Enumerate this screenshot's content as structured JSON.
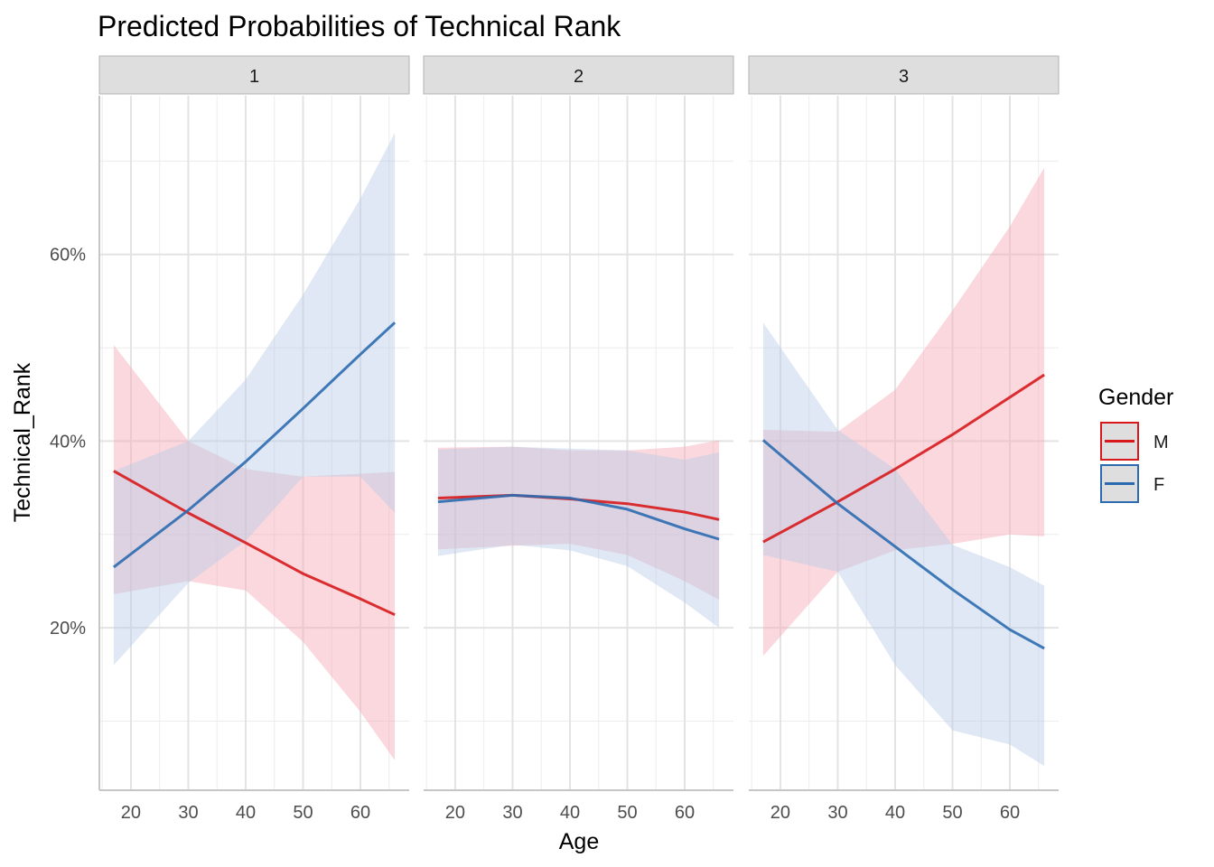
{
  "chart_data": {
    "type": "line",
    "title": "Predicted Probabilities of Technical Rank",
    "xlabel": "Age",
    "ylabel": "Technical_Rank",
    "xlim": [
      14.5,
      68.5
    ],
    "ylim": [
      0.026,
      0.77
    ],
    "x_ticks": [
      20,
      30,
      40,
      50,
      60
    ],
    "x_tick_labels": [
      "20",
      "30",
      "40",
      "50",
      "60"
    ],
    "y_ticks": [
      0.2,
      0.4,
      0.6
    ],
    "y_tick_labels": [
      "20%",
      "40%",
      "60%"
    ],
    "grid": true,
    "legend": {
      "title": "Gender",
      "position": "right",
      "entries": [
        {
          "label": "M",
          "color": "#d7191c",
          "fill": "#dedede"
        },
        {
          "label": "F",
          "color": "#2c6bb0",
          "fill": "#dedede"
        }
      ]
    },
    "colors": {
      "M": "#d7191c",
      "F": "#2c6bb0"
    },
    "band_colors": {
      "M": "#f4a9b5",
      "F": "#b9cde6"
    },
    "facets": [
      {
        "label": "1",
        "series": [
          {
            "name": "M",
            "x": [
              17,
              30,
              40,
              50,
              60,
              66
            ],
            "y": [
              0.368,
              0.323,
              0.291,
              0.258,
              0.231,
              0.214
            ],
            "lower": [
              0.236,
              0.25,
              0.24,
              0.185,
              0.11,
              0.058
            ],
            "upper": [
              0.503,
              0.4,
              0.37,
              0.362,
              0.365,
              0.367
            ]
          },
          {
            "name": "F",
            "x": [
              17,
              30,
              40,
              50,
              60,
              66
            ],
            "y": [
              0.265,
              0.326,
              0.378,
              0.435,
              0.493,
              0.527
            ],
            "lower": [
              0.16,
              0.248,
              0.293,
              0.362,
              0.362,
              0.323
            ],
            "upper": [
              0.368,
              0.4,
              0.466,
              0.557,
              0.66,
              0.73
            ]
          }
        ]
      },
      {
        "label": "2",
        "series": [
          {
            "name": "M",
            "x": [
              17,
              30,
              40,
              50,
              60,
              66
            ],
            "y": [
              0.339,
              0.342,
              0.338,
              0.333,
              0.324,
              0.316
            ],
            "lower": [
              0.284,
              0.288,
              0.29,
              0.278,
              0.25,
              0.23
            ],
            "upper": [
              0.393,
              0.394,
              0.39,
              0.39,
              0.394,
              0.401
            ]
          },
          {
            "name": "F",
            "x": [
              17,
              30,
              40,
              50,
              60,
              66
            ],
            "y": [
              0.335,
              0.342,
              0.339,
              0.327,
              0.306,
              0.295
            ],
            "lower": [
              0.277,
              0.289,
              0.283,
              0.266,
              0.227,
              0.2
            ],
            "upper": [
              0.391,
              0.394,
              0.392,
              0.39,
              0.38,
              0.388
            ]
          }
        ]
      },
      {
        "label": "3",
        "series": [
          {
            "name": "M",
            "x": [
              17,
              30,
              40,
              50,
              60,
              66
            ],
            "y": [
              0.292,
              0.335,
              0.37,
              0.407,
              0.447,
              0.471
            ],
            "lower": [
              0.17,
              0.26,
              0.283,
              0.29,
              0.3,
              0.298
            ],
            "upper": [
              0.412,
              0.41,
              0.455,
              0.54,
              0.63,
              0.693
            ]
          },
          {
            "name": "F",
            "x": [
              17,
              30,
              40,
              50,
              60,
              66
            ],
            "y": [
              0.401,
              0.333,
              0.287,
              0.241,
              0.198,
              0.178
            ],
            "lower": [
              0.278,
              0.26,
              0.16,
              0.09,
              0.075,
              0.052
            ],
            "upper": [
              0.527,
              0.412,
              0.37,
              0.289,
              0.265,
              0.245
            ]
          }
        ]
      }
    ]
  }
}
